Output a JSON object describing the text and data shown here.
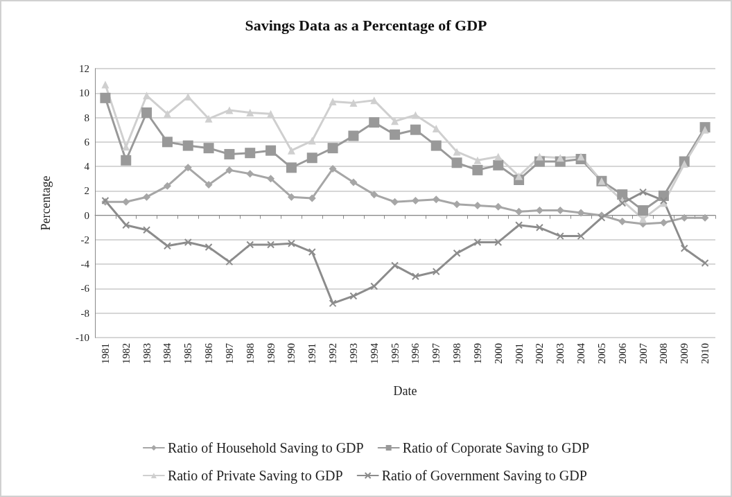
{
  "chart_data": {
    "type": "line",
    "title": "Savings Data as a Percentage of GDP",
    "xlabel": "Date",
    "ylabel": "Percentage",
    "categories": [
      "1981",
      "1982",
      "1983",
      "1984",
      "1985",
      "1986",
      "1987",
      "1988",
      "1989",
      "1990",
      "1991",
      "1992",
      "1993",
      "1994",
      "1995",
      "1996",
      "1997",
      "1998",
      "1999",
      "2000",
      "2001",
      "2002",
      "2003",
      "2004",
      "2005",
      "2006",
      "2007",
      "2008",
      "2009",
      "2010"
    ],
    "series": [
      {
        "name": "Ratio of Household Saving to GDP",
        "color": "#a6a6a6",
        "marker": "diamond",
        "values": [
          1.1,
          1.1,
          1.5,
          2.4,
          3.9,
          2.5,
          3.7,
          3.4,
          3.0,
          1.5,
          1.4,
          3.8,
          2.7,
          1.7,
          1.1,
          1.2,
          1.3,
          0.9,
          0.8,
          0.7,
          0.3,
          0.4,
          0.4,
          0.2,
          0.0,
          -0.5,
          -0.7,
          -0.6,
          -0.2,
          -0.2
        ]
      },
      {
        "name": "Ratio of Coporate Saving to GDP",
        "color": "#999999",
        "marker": "square",
        "values": [
          9.6,
          4.5,
          8.4,
          6.0,
          5.7,
          5.5,
          5.0,
          5.1,
          5.3,
          3.9,
          4.7,
          5.5,
          6.5,
          7.6,
          6.6,
          7.0,
          5.7,
          4.3,
          3.7,
          4.1,
          2.9,
          4.4,
          4.4,
          4.6,
          2.8,
          1.7,
          0.4,
          1.6,
          4.4,
          7.2
        ]
      },
      {
        "name": "Ratio of Private Saving to GDP",
        "color": "#cfcfcf",
        "marker": "triangle",
        "values": [
          10.7,
          5.6,
          9.8,
          8.3,
          9.7,
          7.9,
          8.6,
          8.4,
          8.3,
          5.3,
          6.1,
          9.3,
          9.2,
          9.4,
          7.7,
          8.2,
          7.1,
          5.2,
          4.5,
          4.8,
          3.2,
          4.8,
          4.7,
          4.8,
          2.8,
          1.2,
          -0.3,
          1.0,
          4.2,
          7.0
        ]
      },
      {
        "name": "Ratio of Government Saving to GDP",
        "color": "#8c8c8c",
        "marker": "cross",
        "values": [
          1.2,
          -0.8,
          -1.2,
          -2.5,
          -2.2,
          -2.6,
          -3.8,
          -2.4,
          -2.4,
          -2.3,
          -3.0,
          -7.2,
          -6.6,
          -5.8,
          -4.1,
          -5.0,
          -4.6,
          -3.1,
          -2.2,
          -2.2,
          -0.8,
          -1.0,
          -1.7,
          -1.7,
          -0.2,
          1.0,
          1.9,
          1.2,
          -2.7,
          -3.9
        ]
      }
    ],
    "ylim": [
      -10,
      12
    ],
    "yticks": [
      -10,
      -8,
      -6,
      -4,
      -2,
      0,
      2,
      4,
      6,
      8,
      10,
      12
    ],
    "grid": "y",
    "legend": "bottom"
  }
}
